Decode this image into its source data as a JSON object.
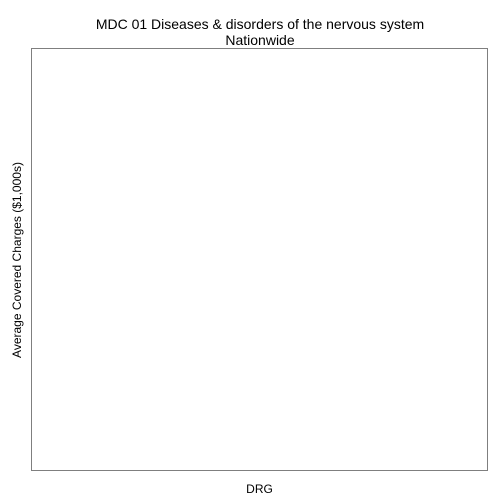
{
  "chart_data": {
    "type": "scatter",
    "title": "MDC 01 Diseases & disorders of the nervous system",
    "subtitle": "Nationwide",
    "xlabel": "DRG",
    "ylabel": "Average Covered Charges ($1,000s)",
    "series": [],
    "categories": [],
    "values": [],
    "grid": false,
    "legend": "none",
    "colors": {
      "background": "#ffffff",
      "frame": "#7f7f7f",
      "text": "#000000"
    }
  }
}
